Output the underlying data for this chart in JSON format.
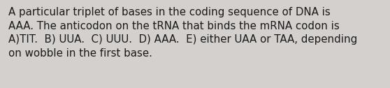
{
  "text_lines": [
    "A particular triplet of bases in the coding sequence of DNA is",
    "AAA. The anticodon on the tRNA that binds the mRNA codon is",
    "A)TIT.  B) UUA.  C) UUU.  D) AAA.  E) either UAA or TAA, depending",
    "on wobble in the first base."
  ],
  "background_color": "#d3d0ce",
  "text_color": "#1a1a1a",
  "font_size": 10.8,
  "fig_width": 5.58,
  "fig_height": 1.26,
  "dpi": 100
}
